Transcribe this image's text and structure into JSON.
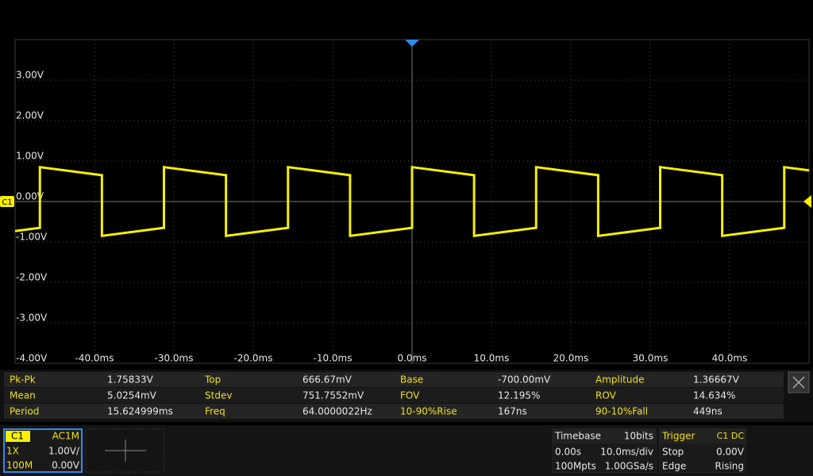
{
  "chart_data": {
    "type": "line",
    "x": [
      -50,
      -46.875,
      -46.875,
      -39.0625,
      -39.0625,
      -31.25,
      -31.25,
      -23.4375,
      -23.4375,
      -15.625,
      -15.625,
      -7.8125,
      -7.8125,
      0,
      0,
      7.8125,
      7.8125,
      15.625,
      15.625,
      23.4375,
      23.4375,
      31.25,
      31.25,
      39.0625,
      39.0625,
      46.875,
      46.875,
      50
    ],
    "values": [
      -0.73,
      -0.65,
      0.85,
      0.65,
      -0.85,
      -0.65,
      0.85,
      0.65,
      -0.85,
      -0.65,
      0.85,
      0.65,
      -0.85,
      -0.65,
      0.85,
      0.65,
      -0.85,
      -0.65,
      0.85,
      0.65,
      -0.85,
      -0.65,
      0.85,
      0.65,
      -0.85,
      -0.65,
      0.85,
      0.77
    ],
    "color": "#f5f000",
    "xlim": [
      -50,
      50
    ],
    "ylim": [
      -4,
      4
    ],
    "xticks": [
      {
        "value": -40,
        "label": "-40.0ms"
      },
      {
        "value": -30,
        "label": "-30.0ms"
      },
      {
        "value": -20,
        "label": "-20.0ms"
      },
      {
        "value": -10,
        "label": "-10.0ms"
      },
      {
        "value": 0,
        "label": "0.0ms"
      },
      {
        "value": 10,
        "label": "10.0ms"
      },
      {
        "value": 20,
        "label": "20.0ms"
      },
      {
        "value": 30,
        "label": "30.0ms"
      },
      {
        "value": 40,
        "label": "40.0ms"
      }
    ],
    "yticks": [
      {
        "value": 3,
        "label": "3.00V"
      },
      {
        "value": 2,
        "label": "2.00V"
      },
      {
        "value": 1,
        "label": "1.00V"
      },
      {
        "value": 0,
        "label": "0.00V"
      },
      {
        "value": -1,
        "label": "-1.00V"
      },
      {
        "value": -2,
        "label": "-2.00V"
      },
      {
        "value": -3,
        "label": "-3.00V"
      },
      {
        "value": -4,
        "label": "-4.00V"
      }
    ],
    "grid": true
  },
  "measurements": {
    "rows": [
      [
        "Pk-Pk",
        "1.75833V",
        "Top",
        "666.67mV",
        "Base",
        "-700.00mV",
        "Amplitude",
        "1.36667V"
      ],
      [
        "Mean",
        "5.0254mV",
        "Stdev",
        "751.7552mV",
        "FOV",
        "12.195%",
        "ROV",
        "14.634%"
      ],
      [
        "Period",
        "15.624999ms",
        "Freq",
        "64.0000022Hz",
        "10-90%Rise",
        "167ns",
        "90-10%Fall",
        "449ns"
      ]
    ]
  },
  "channel": {
    "name": "C1",
    "coupling": "AC1M",
    "probe": "1X",
    "scale": "1.00V/",
    "bandwidth": "100M",
    "offset": "0.00V"
  },
  "timebase": {
    "title": "Timebase",
    "bits": "10bits",
    "delay": "0.00s",
    "scale": "10.0ms/div",
    "memory": "100Mpts",
    "sample_rate": "1.00GSa/s"
  },
  "trigger": {
    "title": "Trigger",
    "source": "C1 DC",
    "state": "Stop",
    "level": "0.00V",
    "type": "Edge",
    "slope": "Rising"
  }
}
